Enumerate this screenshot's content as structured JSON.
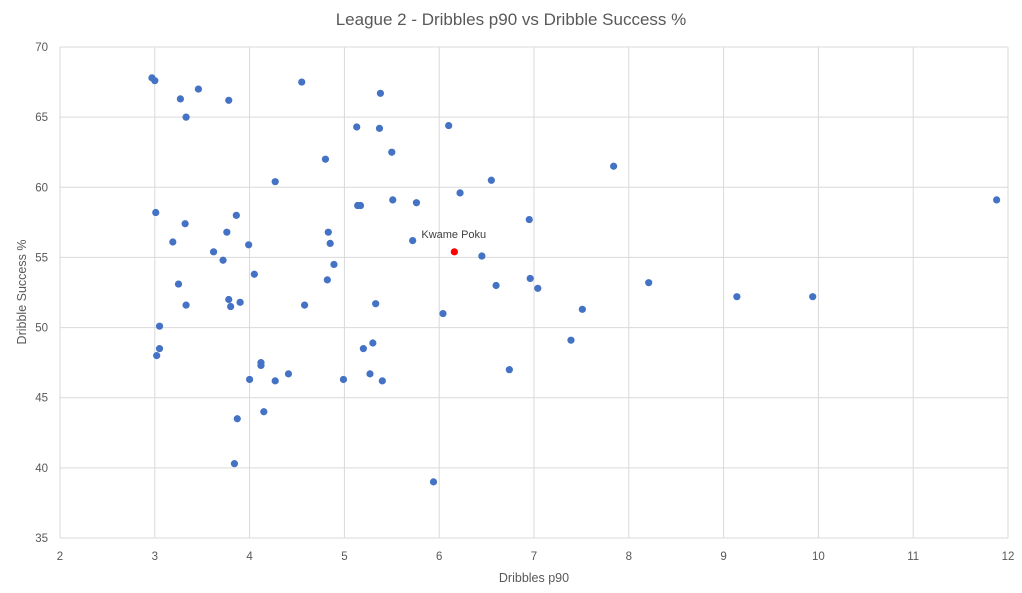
{
  "chart_data": {
    "type": "scatter",
    "title": "League 2 - Dribbles p90 vs Dribble Success %",
    "xlabel": "Dribbles p90",
    "ylabel": "Dribble Success %",
    "xlim": [
      2,
      12
    ],
    "ylim": [
      35,
      70
    ],
    "xticks": [
      2,
      3,
      4,
      5,
      6,
      7,
      8,
      9,
      10,
      11,
      12
    ],
    "yticks": [
      35,
      40,
      45,
      50,
      55,
      60,
      65,
      70
    ],
    "grid": true,
    "legend": "none",
    "colors": {
      "points": "#4472c4",
      "highlight": "#ff0000",
      "grid": "#d9d9d9",
      "text": "#595959"
    },
    "points": [
      {
        "x": 2.97,
        "y": 67.8
      },
      {
        "x": 3.0,
        "y": 67.6
      },
      {
        "x": 3.27,
        "y": 66.3
      },
      {
        "x": 3.46,
        "y": 67.0
      },
      {
        "x": 3.78,
        "y": 66.2
      },
      {
        "x": 3.33,
        "y": 65.0
      },
      {
        "x": 4.55,
        "y": 67.5
      },
      {
        "x": 5.38,
        "y": 66.7
      },
      {
        "x": 5.13,
        "y": 64.3
      },
      {
        "x": 5.37,
        "y": 64.2
      },
      {
        "x": 6.1,
        "y": 64.4
      },
      {
        "x": 4.8,
        "y": 62.0
      },
      {
        "x": 5.5,
        "y": 62.5
      },
      {
        "x": 7.84,
        "y": 61.5
      },
      {
        "x": 4.27,
        "y": 60.4
      },
      {
        "x": 6.55,
        "y": 60.5
      },
      {
        "x": 6.22,
        "y": 59.6
      },
      {
        "x": 5.51,
        "y": 59.1
      },
      {
        "x": 5.76,
        "y": 58.9
      },
      {
        "x": 5.14,
        "y": 58.7
      },
      {
        "x": 5.17,
        "y": 58.7
      },
      {
        "x": 11.88,
        "y": 59.1
      },
      {
        "x": 3.01,
        "y": 58.2
      },
      {
        "x": 3.86,
        "y": 58.0
      },
      {
        "x": 6.95,
        "y": 57.7
      },
      {
        "x": 3.32,
        "y": 57.4
      },
      {
        "x": 3.76,
        "y": 56.8
      },
      {
        "x": 4.83,
        "y": 56.8
      },
      {
        "x": 5.72,
        "y": 56.2
      },
      {
        "x": 3.19,
        "y": 56.1
      },
      {
        "x": 3.99,
        "y": 55.9
      },
      {
        "x": 4.85,
        "y": 56.0
      },
      {
        "x": 3.62,
        "y": 55.4
      },
      {
        "x": 6.45,
        "y": 55.1
      },
      {
        "x": 3.72,
        "y": 54.8
      },
      {
        "x": 4.89,
        "y": 54.5
      },
      {
        "x": 4.05,
        "y": 53.8
      },
      {
        "x": 4.82,
        "y": 53.4
      },
      {
        "x": 6.96,
        "y": 53.5
      },
      {
        "x": 8.21,
        "y": 53.2
      },
      {
        "x": 3.25,
        "y": 53.1
      },
      {
        "x": 6.6,
        "y": 53.0
      },
      {
        "x": 7.04,
        "y": 52.8
      },
      {
        "x": 9.14,
        "y": 52.2
      },
      {
        "x": 9.94,
        "y": 52.2
      },
      {
        "x": 3.78,
        "y": 52.0
      },
      {
        "x": 3.9,
        "y": 51.8
      },
      {
        "x": 4.58,
        "y": 51.6
      },
      {
        "x": 5.33,
        "y": 51.7
      },
      {
        "x": 3.33,
        "y": 51.6
      },
      {
        "x": 3.8,
        "y": 51.5
      },
      {
        "x": 7.51,
        "y": 51.3
      },
      {
        "x": 6.04,
        "y": 51.0
      },
      {
        "x": 3.05,
        "y": 50.1
      },
      {
        "x": 7.39,
        "y": 49.1
      },
      {
        "x": 5.3,
        "y": 48.9
      },
      {
        "x": 3.05,
        "y": 48.5
      },
      {
        "x": 5.2,
        "y": 48.5
      },
      {
        "x": 3.02,
        "y": 48.0
      },
      {
        "x": 4.12,
        "y": 47.5
      },
      {
        "x": 4.12,
        "y": 47.3
      },
      {
        "x": 6.74,
        "y": 47.0
      },
      {
        "x": 4.41,
        "y": 46.7
      },
      {
        "x": 5.27,
        "y": 46.7
      },
      {
        "x": 4.0,
        "y": 46.3
      },
      {
        "x": 4.27,
        "y": 46.2
      },
      {
        "x": 4.99,
        "y": 46.3
      },
      {
        "x": 5.4,
        "y": 46.2
      },
      {
        "x": 4.15,
        "y": 44.0
      },
      {
        "x": 3.87,
        "y": 43.5
      },
      {
        "x": 3.84,
        "y": 40.3
      },
      {
        "x": 5.94,
        "y": 39.0
      }
    ],
    "highlight": {
      "label": "Kwame Poku",
      "x": 6.16,
      "y": 55.4
    }
  }
}
